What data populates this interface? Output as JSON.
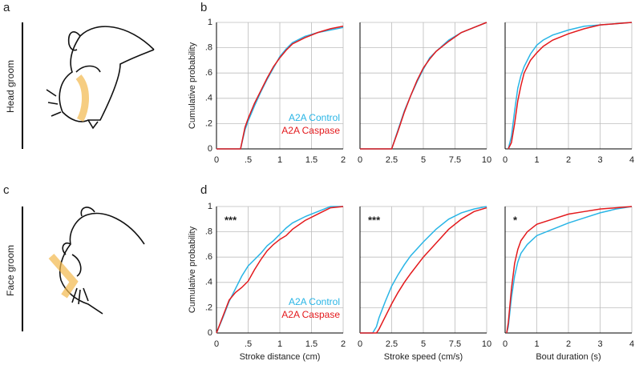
{
  "figure": {
    "panels": [
      "a",
      "b",
      "c",
      "d"
    ],
    "row_labels": [
      "Head groom",
      "Face groom"
    ]
  },
  "chart_data": [
    {
      "type": "line",
      "ylabel": "Cumulative probability",
      "show_ytick_labels": true,
      "legend": "lower right",
      "xlim": [
        0,
        2
      ],
      "xticks": [
        0,
        {
          "value": 0.5,
          "label": ".5"
        },
        1,
        1.5,
        2
      ],
      "ylim": [
        0,
        1
      ],
      "yticks": [
        0,
        {
          "value": 0.2,
          "label": ".2"
        },
        {
          "value": 0.4,
          "label": ".4"
        },
        {
          "value": 0.6,
          "label": ".6"
        },
        {
          "value": 0.8,
          "label": ".8"
        },
        1
      ],
      "grid": true,
      "x": [
        0,
        0.38,
        0.45,
        0.5,
        0.6,
        0.7,
        0.8,
        0.9,
        1.0,
        1.1,
        1.2,
        1.4,
        1.6,
        1.8,
        2.0
      ],
      "series": [
        {
          "name": "A2A Control",
          "color": "#29b5e6",
          "values": [
            0,
            0,
            0.15,
            0.22,
            0.34,
            0.45,
            0.55,
            0.64,
            0.73,
            0.79,
            0.84,
            0.89,
            0.92,
            0.94,
            0.96
          ]
        },
        {
          "name": "A2A Caspase",
          "color": "#e3191c",
          "values": [
            0,
            0,
            0.17,
            0.24,
            0.36,
            0.46,
            0.56,
            0.65,
            0.72,
            0.78,
            0.83,
            0.88,
            0.92,
            0.95,
            0.97
          ]
        }
      ]
    },
    {
      "type": "line",
      "show_ytick_labels": false,
      "xlim": [
        0,
        10
      ],
      "xticks": [
        0,
        2.5,
        5,
        7.5,
        10
      ],
      "ylim": [
        0,
        1
      ],
      "yticks": [
        0,
        0.2,
        0.4,
        0.6,
        0.8,
        1
      ],
      "grid": true,
      "x": [
        0,
        2.5,
        3,
        3.5,
        4,
        4.5,
        5,
        5.5,
        6,
        7,
        8,
        9,
        10
      ],
      "series": [
        {
          "color": "#29b5e6",
          "values": [
            0,
            0,
            0.15,
            0.3,
            0.42,
            0.53,
            0.63,
            0.72,
            0.77,
            0.86,
            0.92,
            0.96,
            1.0
          ]
        },
        {
          "color": "#e3191c",
          "values": [
            0,
            0,
            0.14,
            0.29,
            0.42,
            0.54,
            0.64,
            0.71,
            0.77,
            0.85,
            0.92,
            0.96,
            1.0
          ]
        }
      ]
    },
    {
      "type": "line",
      "show_ytick_labels": false,
      "xlim": [
        0,
        4
      ],
      "xticks": [
        0,
        1,
        2,
        3,
        4
      ],
      "ylim": [
        0,
        1
      ],
      "yticks": [
        0,
        0.2,
        0.4,
        0.6,
        0.8,
        1
      ],
      "grid": true,
      "x": [
        0.1,
        0.2,
        0.3,
        0.4,
        0.5,
        0.6,
        0.8,
        1.0,
        1.2,
        1.5,
        2,
        2.5,
        3,
        4
      ],
      "series": [
        {
          "color": "#29b5e6",
          "values": [
            0,
            0.1,
            0.3,
            0.48,
            0.58,
            0.65,
            0.75,
            0.82,
            0.86,
            0.9,
            0.94,
            0.97,
            0.98,
            1.0
          ]
        },
        {
          "color": "#e3191c",
          "values": [
            0,
            0.05,
            0.2,
            0.38,
            0.5,
            0.6,
            0.7,
            0.76,
            0.81,
            0.86,
            0.91,
            0.95,
            0.98,
            1.0
          ]
        }
      ]
    },
    {
      "type": "line",
      "ylabel": "Cumulative probability",
      "xlabel": "Stroke distance (cm)",
      "show_ytick_labels": true,
      "legend": "lower right",
      "annotation": "***",
      "xlim": [
        0,
        2
      ],
      "xticks": [
        0,
        {
          "value": 0.5,
          "label": ".5"
        },
        1,
        1.5,
        2
      ],
      "ylim": [
        0,
        1
      ],
      "yticks": [
        0,
        {
          "value": 0.2,
          "label": ".2"
        },
        {
          "value": 0.4,
          "label": ".4"
        },
        {
          "value": 0.6,
          "label": ".6"
        },
        {
          "value": 0.8,
          "label": ".8"
        },
        1
      ],
      "grid": true,
      "x": [
        0,
        0.1,
        0.2,
        0.3,
        0.4,
        0.5,
        0.6,
        0.7,
        0.8,
        0.9,
        1.0,
        1.1,
        1.2,
        1.4,
        1.6,
        1.8,
        2
      ],
      "series": [
        {
          "name": "A2A Control",
          "color": "#29b5e6",
          "values": [
            0,
            0.12,
            0.25,
            0.35,
            0.45,
            0.53,
            0.58,
            0.63,
            0.69,
            0.73,
            0.78,
            0.83,
            0.87,
            0.92,
            0.96,
            1.0,
            1.0
          ]
        },
        {
          "name": "A2A Caspase",
          "color": "#e3191c",
          "values": [
            0,
            0.13,
            0.26,
            0.32,
            0.36,
            0.41,
            0.5,
            0.58,
            0.65,
            0.7,
            0.74,
            0.77,
            0.82,
            0.89,
            0.94,
            0.99,
            1.0
          ]
        }
      ]
    },
    {
      "type": "line",
      "xlabel": "Stroke speed (cm/s)",
      "show_ytick_labels": false,
      "annotation": "***",
      "xlim": [
        0,
        10
      ],
      "xticks": [
        0,
        2.5,
        5,
        7.5,
        10
      ],
      "ylim": [
        0,
        1
      ],
      "yticks": [
        0,
        0.2,
        0.4,
        0.6,
        0.8,
        1
      ],
      "grid": true,
      "x": [
        0,
        1,
        1.3,
        1.5,
        2,
        2.5,
        3,
        3.5,
        4,
        5,
        6,
        7,
        8,
        9,
        10
      ],
      "series": [
        {
          "color": "#29b5e6",
          "values": [
            0,
            0,
            0.05,
            0.12,
            0.25,
            0.37,
            0.46,
            0.54,
            0.61,
            0.72,
            0.82,
            0.9,
            0.95,
            0.98,
            1.0
          ]
        },
        {
          "color": "#e3191c",
          "values": [
            0,
            0,
            0,
            0.03,
            0.13,
            0.23,
            0.32,
            0.4,
            0.47,
            0.6,
            0.71,
            0.82,
            0.9,
            0.96,
            0.99
          ]
        }
      ]
    },
    {
      "type": "line",
      "xlabel": "Bout duration (s)",
      "show_ytick_labels": false,
      "annotation": "*",
      "xlim": [
        0,
        4
      ],
      "xticks": [
        0,
        1,
        2,
        3,
        4
      ],
      "ylim": [
        0,
        1
      ],
      "yticks": [
        0,
        0.2,
        0.4,
        0.6,
        0.8,
        1
      ],
      "grid": true,
      "x": [
        0.05,
        0.1,
        0.2,
        0.3,
        0.4,
        0.5,
        0.7,
        1.0,
        1.5,
        2,
        2.5,
        3,
        3.5,
        4
      ],
      "series": [
        {
          "color": "#29b5e6",
          "values": [
            0,
            0.05,
            0.28,
            0.45,
            0.56,
            0.63,
            0.7,
            0.77,
            0.82,
            0.87,
            0.91,
            0.95,
            0.98,
            1.0
          ]
        },
        {
          "color": "#e3191c",
          "values": [
            0,
            0.08,
            0.35,
            0.55,
            0.66,
            0.73,
            0.8,
            0.86,
            0.9,
            0.94,
            0.96,
            0.98,
            0.99,
            1.0
          ]
        }
      ]
    }
  ]
}
